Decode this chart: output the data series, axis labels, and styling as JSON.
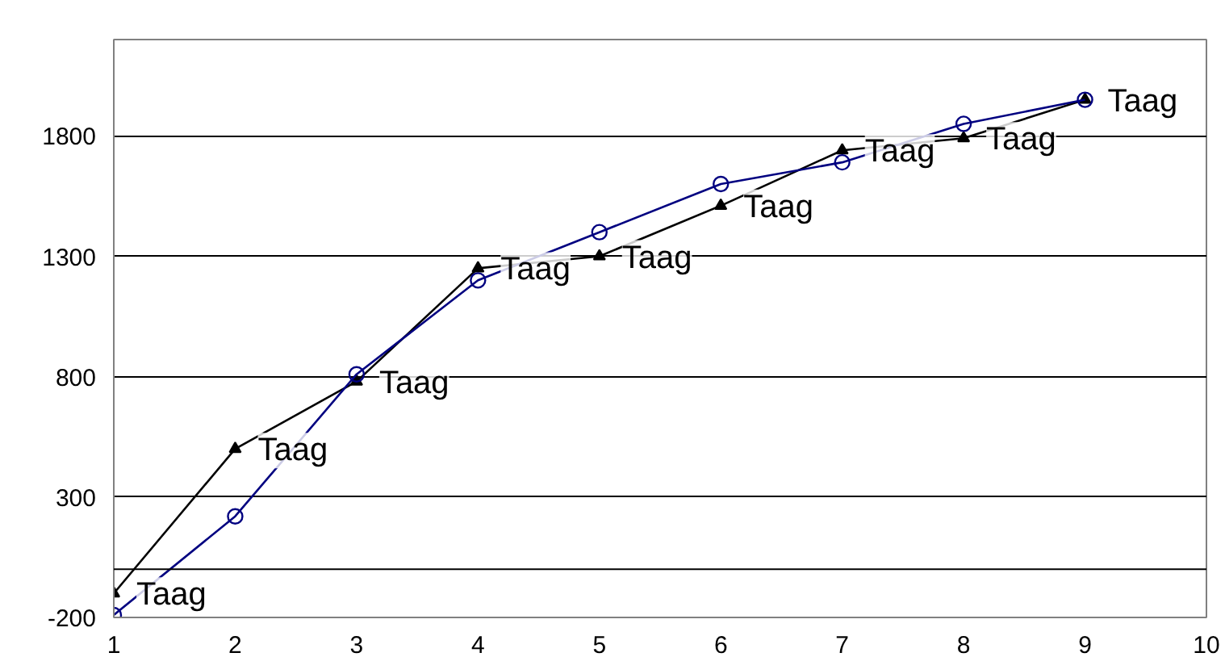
{
  "chart_data": {
    "type": "line",
    "x": [
      1,
      2,
      3,
      4,
      5,
      6,
      7,
      8,
      9
    ],
    "series": [
      {
        "color": "#000000",
        "marker": "triangle",
        "values": [
          -100,
          500,
          780,
          1250,
          1300,
          1510,
          1740,
          1790,
          1950
        ]
      },
      {
        "color": "#000080",
        "marker": "circle",
        "values": [
          -190,
          220,
          810,
          1200,
          1400,
          1600,
          1690,
          1850,
          1950
        ]
      }
    ],
    "xlim": [
      1,
      10
    ],
    "xticks": [
      1,
      2,
      3,
      4,
      5,
      6,
      7,
      8,
      9,
      10
    ],
    "ylim": [
      -200,
      2200
    ],
    "yticks": [
      -200,
      300,
      800,
      1300,
      1800
    ],
    "grid": "y",
    "line_style": "solid",
    "ref_lines": [
      {
        "axis": "y",
        "value": 0,
        "color": "#000000"
      }
    ],
    "annotations": [
      {
        "text": "Taag",
        "x": 1,
        "y": -100
      },
      {
        "text": "Taag",
        "x": 2,
        "y": 500
      },
      {
        "text": "Taag",
        "x": 3,
        "y": 780
      },
      {
        "text": "Taag",
        "x": 4,
        "y": 1250
      },
      {
        "text": "Taag",
        "x": 5,
        "y": 1300
      },
      {
        "text": "Taag",
        "x": 6,
        "y": 1510
      },
      {
        "text": "Taag",
        "x": 7,
        "y": 1740
      },
      {
        "text": "Taag",
        "x": 8,
        "y": 1790
      },
      {
        "text": "Taag",
        "x": 9,
        "y": 1950
      }
    ]
  }
}
